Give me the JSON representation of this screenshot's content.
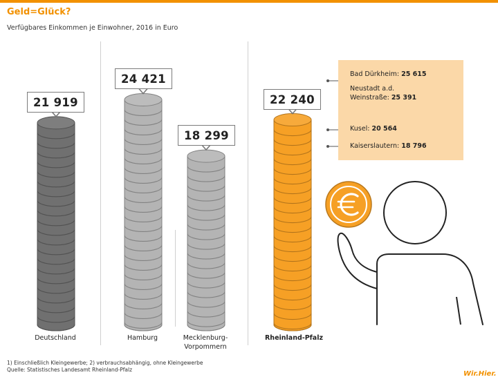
{
  "header": {
    "title": "Geld=Glück?",
    "subtitle": "Verfügbares Einkommen je Einwohner, 2016 in Euro"
  },
  "chart_data": {
    "type": "bar",
    "categories": [
      "Deutschland",
      "Hamburg",
      "Mecklenburg-\nVorpommern",
      "Rheinland-Pfalz"
    ],
    "values": [
      21919,
      24421,
      18299,
      22240
    ],
    "value_labels": [
      "21 919",
      "24 421",
      "18 299",
      "22 240"
    ],
    "unit": "Euro",
    "highlight": "Rheinland-Pfalz",
    "colors": {
      "deutschland": "#707070",
      "others": "#b4b4b4",
      "highlight": "#f6a025",
      "accent": "#f29100"
    },
    "districts": [
      {
        "name": "Bad Dürkheim:",
        "value": 25615,
        "value_label": "25 615"
      },
      {
        "name": "Neustadt a.d.\nWeinstraße:",
        "value": 25391,
        "value_label": "25 391"
      },
      {
        "name": "Kusel:",
        "value": 20564,
        "value_label": "20 564"
      },
      {
        "name": "Kaiserslautern:",
        "value": 18796,
        "value_label": "18 796"
      }
    ]
  },
  "footnote": {
    "line1": "1) Einschließlich Kleingewerbe; 2) verbrauchsabhängig, ohne Kleingewerbe",
    "line2": "Quelle: Statistisches Landesamt Rheinland-Pfalz"
  },
  "logo": {
    "text": "Wir.Hier."
  },
  "illustration": {
    "coin_icon": "euro-coin-icon",
    "person_icon": "person-icon"
  }
}
